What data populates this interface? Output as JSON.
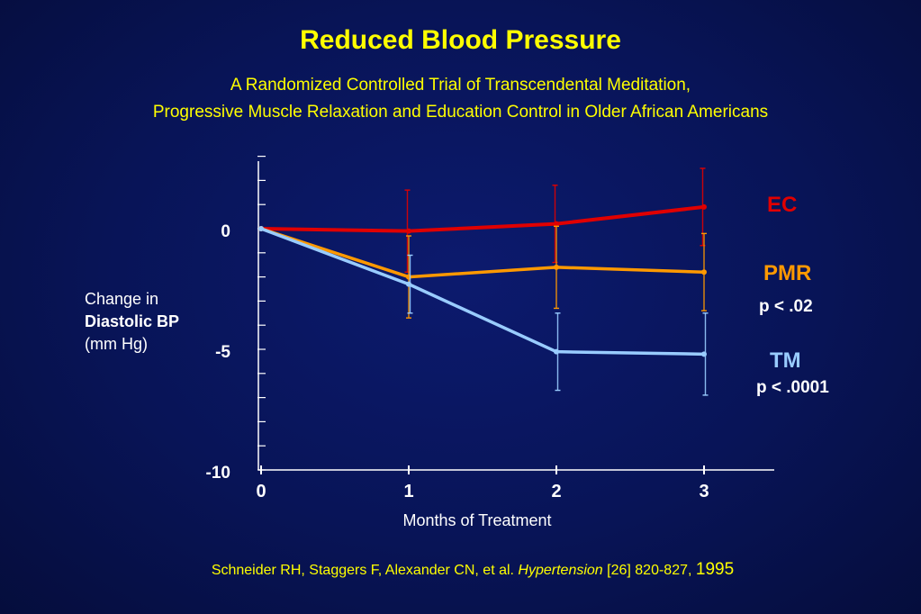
{
  "title": "Reduced Blood Pressure",
  "subtitle_line1": "A Randomized Controlled Trial of Transcendental Meditation,",
  "subtitle_line2": "Progressive Muscle Relaxation and Education Control in Older African Americans",
  "ylabel_line1": "Change in",
  "ylabel_line2": "Diastolic BP",
  "ylabel_line3": "(mm Hg)",
  "xlabel": "Months of Treatment",
  "citation_authors": "Schneider RH, Staggers F,  Alexander CN, et al. ",
  "citation_journal": "Hypertension",
  "citation_pages": " [26]  820-827, ",
  "citation_year": "1995",
  "colors": {
    "background": "#081457",
    "title": "#ffff00",
    "EC": "#e00000",
    "PMR": "#ff9900",
    "TM": "#99ccff",
    "axis": "#ffffff"
  },
  "chart_data": {
    "type": "line",
    "x": [
      0,
      1,
      2,
      3
    ],
    "xticks": [
      "0",
      "1",
      "2",
      "3"
    ],
    "yticks": [
      {
        "value": 0,
        "label": "0"
      },
      {
        "value": -5,
        "label": "-5"
      },
      {
        "value": -10,
        "label": "-10"
      }
    ],
    "ylim": [
      -10,
      2.8
    ],
    "xlabel": "Months of Treatment",
    "ylabel": "Change in Diastolic BP (mm Hg)",
    "series": [
      {
        "name": "EC",
        "color": "#e00000",
        "values": [
          0,
          -0.1,
          0.2,
          0.9
        ],
        "err": [
          0,
          1.7,
          1.6,
          1.6
        ],
        "pvalue": ""
      },
      {
        "name": "PMR",
        "color": "#ff9900",
        "values": [
          0,
          -2.0,
          -1.6,
          -1.8
        ],
        "err": [
          0,
          1.7,
          1.7,
          1.6
        ],
        "pvalue": "p < .02"
      },
      {
        "name": "TM",
        "color": "#99ccff",
        "values": [
          0,
          -2.3,
          -5.1,
          -5.2
        ],
        "err": [
          0,
          1.2,
          1.6,
          1.7
        ],
        "pvalue": "p < .0001"
      }
    ]
  }
}
